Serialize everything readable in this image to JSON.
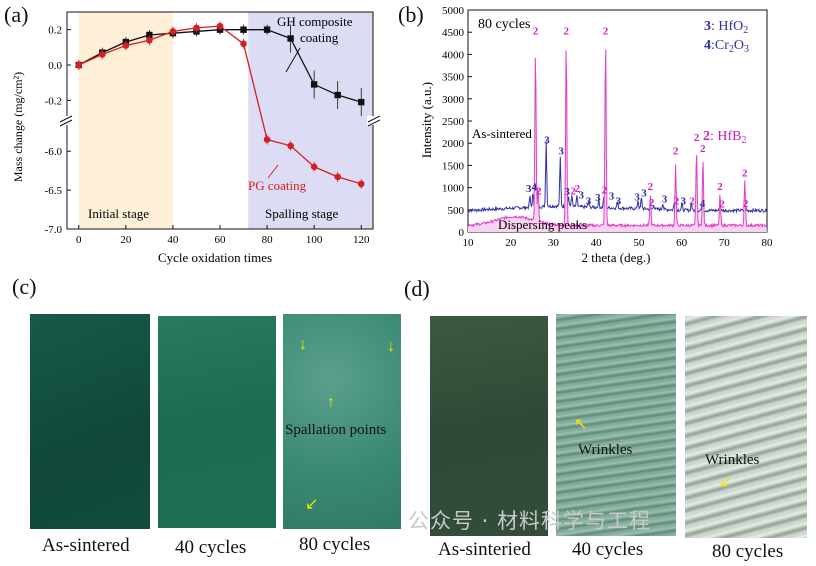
{
  "panels": {
    "a": "(a)",
    "b": "(b)",
    "c": "(c)",
    "d": "(d)"
  },
  "chart_data": [
    {
      "type": "line",
      "panel": "a",
      "xlabel": "Cycle oxidation times",
      "ylabel": "Mass change (mg/cm²)",
      "x_ticks": [
        "0",
        "20",
        "40",
        "60",
        "80",
        "100",
        "120"
      ],
      "y_ticks_upper": [
        "0.2",
        "0.0",
        "-0.2"
      ],
      "y_ticks_lower": [
        "-6.0",
        "-6.5",
        "-7.0"
      ],
      "broken_axis": true,
      "series": [
        {
          "name": "GH composite coating",
          "color": "#111111",
          "marker": "square",
          "x": [
            0,
            10,
            20,
            30,
            40,
            50,
            60,
            70,
            80,
            90,
            100,
            110,
            120
          ],
          "y": [
            0.0,
            0.07,
            0.13,
            0.17,
            0.18,
            0.19,
            0.2,
            0.2,
            0.2,
            0.15,
            -0.11,
            -0.17,
            -0.21
          ]
        },
        {
          "name": "PG coating",
          "color": "#d42020",
          "marker": "circle",
          "x": [
            0,
            10,
            20,
            30,
            40,
            50,
            60,
            70,
            80,
            90,
            100,
            110,
            120
          ],
          "y": [
            0.0,
            0.06,
            0.11,
            0.14,
            0.19,
            0.21,
            0.22,
            0.12,
            -5.85,
            -5.93,
            -6.2,
            -6.33,
            -6.42
          ]
        }
      ],
      "regions": [
        {
          "label": "Initial stage",
          "x_from": 0,
          "x_to": 40,
          "color": "#fdf0d6"
        },
        {
          "label": "Spalling stage",
          "x_from": 70,
          "x_to": 125,
          "color": "#dcdcf5"
        }
      ],
      "annotations": {
        "gh": "GH composite\ncoating",
        "pg": "PG coating"
      }
    },
    {
      "type": "line",
      "panel": "b",
      "xlabel": "2 theta (deg.)",
      "ylabel": "Intensity (a.u.)",
      "x_ticks": [
        "10",
        "20",
        "30",
        "40",
        "50",
        "60",
        "70",
        "80"
      ],
      "y_ticks": [
        "0",
        "500",
        "1000",
        "1500",
        "2000",
        "2500",
        "3000",
        "3500",
        "4000",
        "4500",
        "5000"
      ],
      "series": [
        {
          "name": "80 cycles",
          "color": "#3030a8"
        },
        {
          "name": "As-sintered",
          "color": "#e040c8"
        }
      ],
      "legend": {
        "hfo2_label": "3: HfO₂",
        "cr2o3_label": "4:Cr₂O₃",
        "hfb2_label": "2: HfB₂"
      },
      "annotations": {
        "top_title": "80 cycles",
        "bottom_title": "As-sintered",
        "dispersing": "Dispersing  peaks"
      },
      "peak_labels_upper": [
        "3",
        "4",
        "2",
        "3",
        "3",
        "2",
        "2",
        "3",
        "3",
        "3",
        "4",
        "3",
        "3",
        "3",
        "2",
        "3",
        "2",
        "3",
        "4",
        "2",
        "2"
      ],
      "peak_labels_lower": [
        "2",
        "2",
        "2",
        "2",
        "2",
        "2",
        "2",
        "2",
        "2"
      ]
    }
  ],
  "photos_c": {
    "captions": [
      "As-sintered",
      "40 cycles",
      "80 cycles"
    ],
    "annotation": "Spallation points"
  },
  "photos_d": {
    "captions": [
      "As-sinteried",
      "40 cycles",
      "80 cycles"
    ],
    "annotation_1": "Wrinkles",
    "annotation_2": "Wrinkles"
  },
  "watermark": "公众号 · 材料科学与工程"
}
